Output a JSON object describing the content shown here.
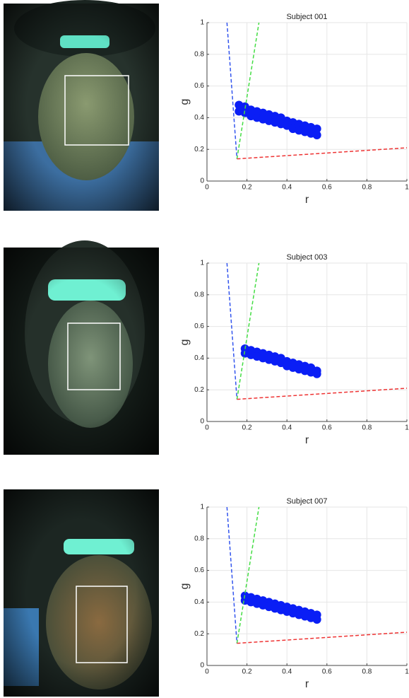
{
  "chart_data": [
    {
      "type": "scatter",
      "title": "Subject 001",
      "xlabel": "r",
      "ylabel": "g",
      "xlim": [
        0,
        1
      ],
      "ylim": [
        0,
        1
      ],
      "xticks": [
        0,
        0.2,
        0.4,
        0.6,
        0.8,
        1
      ],
      "yticks": [
        0,
        0.2,
        0.4,
        0.6,
        0.8,
        1
      ],
      "grid": true,
      "series": [
        {
          "color": "#0a1ef5",
          "line_style": "none",
          "x": [
            0.16,
            0.19,
            0.22,
            0.25,
            0.28,
            0.31,
            0.34,
            0.37,
            0.4,
            0.43,
            0.46,
            0.49,
            0.52,
            0.55,
            0.16,
            0.19,
            0.22,
            0.25,
            0.28,
            0.31,
            0.34,
            0.37,
            0.4,
            0.43,
            0.46,
            0.49,
            0.52,
            0.55
          ],
          "y": [
            0.48,
            0.47,
            0.45,
            0.44,
            0.43,
            0.42,
            0.41,
            0.4,
            0.38,
            0.37,
            0.36,
            0.35,
            0.34,
            0.33,
            0.44,
            0.43,
            0.41,
            0.4,
            0.39,
            0.38,
            0.37,
            0.36,
            0.35,
            0.33,
            0.32,
            0.31,
            0.3,
            0.29
          ]
        },
        {
          "color": "#3355ee",
          "line_style": "dashed",
          "x": [
            0.1,
            0.15
          ],
          "y": [
            1,
            0.14
          ]
        },
        {
          "color": "#44dd44",
          "line_style": "dashed",
          "x": [
            0.15,
            0.26
          ],
          "y": [
            0.14,
            1
          ]
        },
        {
          "color": "#ee3333",
          "line_style": "dashed",
          "x": [
            0.15,
            1
          ],
          "y": [
            0.14,
            0.21
          ]
        }
      ]
    },
    {
      "type": "scatter",
      "title": "Subject 003",
      "xlabel": "r",
      "ylabel": "g",
      "xlim": [
        0,
        1
      ],
      "ylim": [
        0,
        1
      ],
      "xticks": [
        0,
        0.2,
        0.4,
        0.6,
        0.8,
        1
      ],
      "yticks": [
        0,
        0.2,
        0.4,
        0.6,
        0.8,
        1
      ],
      "grid": true,
      "series": [
        {
          "color": "#0a1ef5",
          "line_style": "none",
          "x": [
            0.19,
            0.22,
            0.25,
            0.28,
            0.31,
            0.34,
            0.37,
            0.4,
            0.43,
            0.46,
            0.49,
            0.52,
            0.55,
            0.19,
            0.22,
            0.25,
            0.28,
            0.31,
            0.34,
            0.37,
            0.4,
            0.43,
            0.46,
            0.49,
            0.52,
            0.55
          ],
          "y": [
            0.46,
            0.45,
            0.44,
            0.43,
            0.42,
            0.41,
            0.4,
            0.38,
            0.37,
            0.36,
            0.35,
            0.34,
            0.32,
            0.43,
            0.42,
            0.41,
            0.4,
            0.39,
            0.38,
            0.37,
            0.35,
            0.34,
            0.33,
            0.32,
            0.31,
            0.3
          ]
        },
        {
          "color": "#3355ee",
          "line_style": "dashed",
          "x": [
            0.1,
            0.15
          ],
          "y": [
            1,
            0.14
          ]
        },
        {
          "color": "#44dd44",
          "line_style": "dashed",
          "x": [
            0.15,
            0.26
          ],
          "y": [
            0.14,
            1
          ]
        },
        {
          "color": "#ee3333",
          "line_style": "dashed",
          "x": [
            0.15,
            1
          ],
          "y": [
            0.14,
            0.21
          ]
        }
      ]
    },
    {
      "type": "scatter",
      "title": "Subject 007",
      "xlabel": "r",
      "ylabel": "g",
      "xlim": [
        0,
        1
      ],
      "ylim": [
        0,
        1
      ],
      "xticks": [
        0,
        0.2,
        0.4,
        0.6,
        0.8,
        1
      ],
      "yticks": [
        0,
        0.2,
        0.4,
        0.6,
        0.8,
        1
      ],
      "grid": true,
      "series": [
        {
          "color": "#0a1ef5",
          "line_style": "none",
          "x": [
            0.19,
            0.22,
            0.25,
            0.28,
            0.31,
            0.34,
            0.37,
            0.4,
            0.43,
            0.46,
            0.49,
            0.52,
            0.55,
            0.19,
            0.22,
            0.25,
            0.28,
            0.31,
            0.34,
            0.37,
            0.4,
            0.43,
            0.46,
            0.49,
            0.52,
            0.55
          ],
          "y": [
            0.44,
            0.43,
            0.42,
            0.41,
            0.4,
            0.39,
            0.38,
            0.37,
            0.36,
            0.35,
            0.34,
            0.33,
            0.32,
            0.41,
            0.4,
            0.39,
            0.38,
            0.37,
            0.36,
            0.35,
            0.34,
            0.33,
            0.32,
            0.31,
            0.3,
            0.29
          ]
        },
        {
          "color": "#3355ee",
          "line_style": "dashed",
          "x": [
            0.1,
            0.15
          ],
          "y": [
            1,
            0.14
          ]
        },
        {
          "color": "#44dd44",
          "line_style": "dashed",
          "x": [
            0.15,
            0.26
          ],
          "y": [
            0.14,
            1
          ]
        },
        {
          "color": "#ee3333",
          "line_style": "dashed",
          "x": [
            0.15,
            1
          ],
          "y": [
            0.14,
            0.21
          ]
        }
      ]
    }
  ]
}
